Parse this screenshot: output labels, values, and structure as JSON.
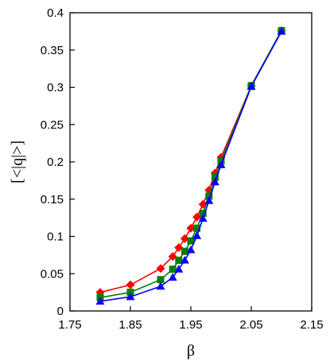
{
  "chart_data": {
    "type": "line",
    "xlabel": "β",
    "ylabel": "[<|q|>]",
    "xlim": [
      1.75,
      2.15
    ],
    "ylim": [
      0,
      0.4
    ],
    "x_ticks": [
      1.75,
      1.85,
      1.95,
      2.05,
      2.15
    ],
    "x_tick_labels": [
      "1.75",
      "1.85",
      "1.95",
      "2.05",
      "2.15"
    ],
    "y_ticks": [
      0,
      0.05,
      0.1,
      0.15,
      0.2,
      0.25,
      0.3,
      0.35,
      0.4
    ],
    "y_tick_labels": [
      "0",
      "0.05",
      "0.1",
      "0.15",
      "0.2",
      "0.25",
      "0.3",
      "0.35",
      "0.4"
    ],
    "grid": false,
    "legend": "none",
    "series": [
      {
        "color": "#ff0000",
        "marker": "diamond",
        "x": [
          1.8,
          1.85,
          1.9,
          1.92,
          1.93,
          1.94,
          1.95,
          1.96,
          1.97,
          1.98,
          1.99,
          2.0,
          2.05,
          2.1
        ],
        "y": [
          0.025,
          0.035,
          0.057,
          0.073,
          0.085,
          0.097,
          0.111,
          0.126,
          0.143,
          0.162,
          0.185,
          0.206,
          0.302,
          0.376
        ]
      },
      {
        "color": "#008000",
        "marker": "square",
        "x": [
          1.8,
          1.85,
          1.9,
          1.92,
          1.93,
          1.94,
          1.95,
          1.96,
          1.97,
          1.98,
          1.99,
          2.0,
          2.05,
          2.1
        ],
        "y": [
          0.018,
          0.025,
          0.042,
          0.056,
          0.068,
          0.08,
          0.094,
          0.111,
          0.131,
          0.154,
          0.179,
          0.201,
          0.302,
          0.376
        ]
      },
      {
        "color": "#0000ff",
        "marker": "triangle",
        "x": [
          1.8,
          1.85,
          1.9,
          1.92,
          1.93,
          1.94,
          1.95,
          1.96,
          1.97,
          1.98,
          1.99,
          2.0,
          2.05,
          2.1
        ],
        "y": [
          0.013,
          0.019,
          0.033,
          0.045,
          0.056,
          0.068,
          0.082,
          0.101,
          0.124,
          0.148,
          0.173,
          0.196,
          0.301,
          0.375
        ]
      }
    ]
  }
}
